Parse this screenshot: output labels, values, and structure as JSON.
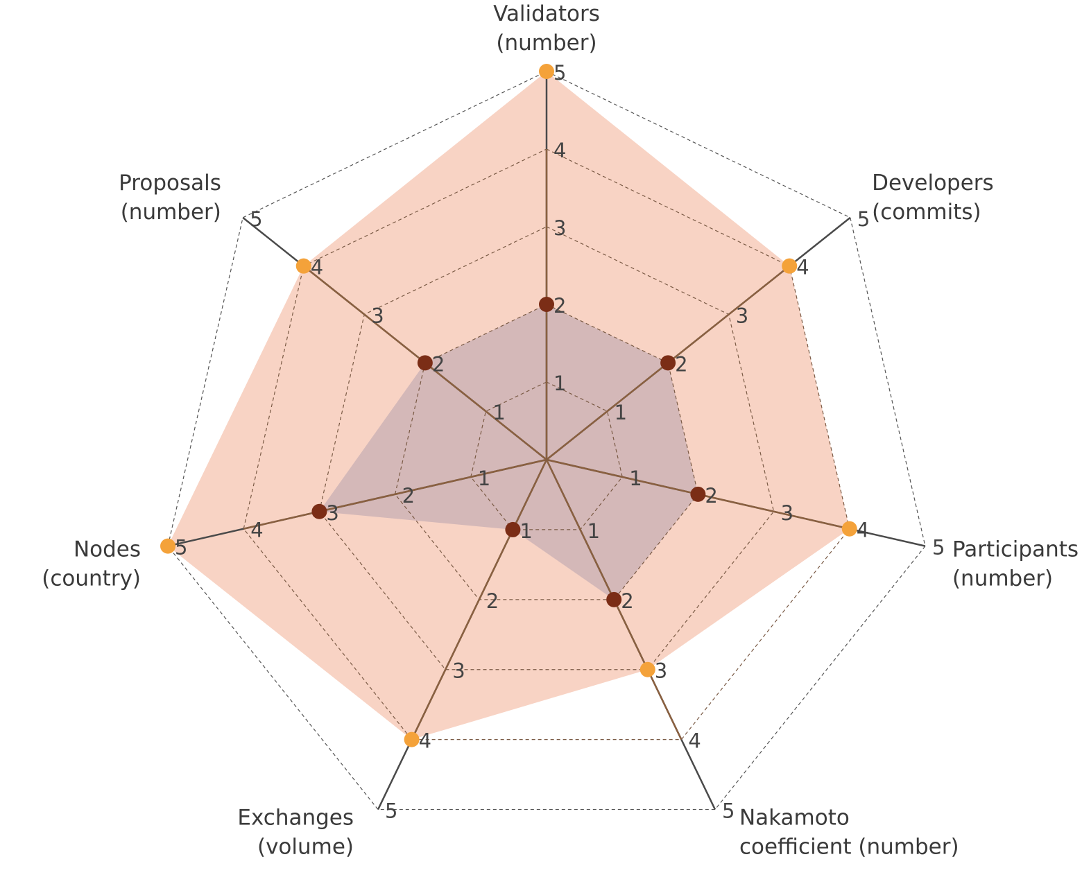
{
  "chart_data": {
    "type": "radar",
    "axes": [
      {
        "line1": "Validators",
        "line2": "(number)"
      },
      {
        "line1": "Developers",
        "line2": "(commits)"
      },
      {
        "line1": "Participants",
        "line2": "(number)"
      },
      {
        "line1": "Nakamoto",
        "line2": "coefficient  (number)"
      },
      {
        "line1": "Exchanges",
        "line2": "(volume)"
      },
      {
        "line1": "Nodes",
        "line2": "(country)"
      },
      {
        "line1": "Proposals",
        "line2": "(number)"
      }
    ],
    "range": [
      0,
      5
    ],
    "ticks": [
      "1",
      "2",
      "3",
      "4",
      "5"
    ],
    "grid": true,
    "series": [
      {
        "values": [
          5,
          4,
          4,
          3,
          4,
          5,
          4
        ],
        "fill": "#f8d3c4",
        "marker": "#f4a23a"
      },
      {
        "values": [
          2,
          2,
          2,
          2,
          1,
          3,
          2
        ],
        "fill": "#d4b8b8",
        "marker": "#7b2d16"
      }
    ]
  }
}
